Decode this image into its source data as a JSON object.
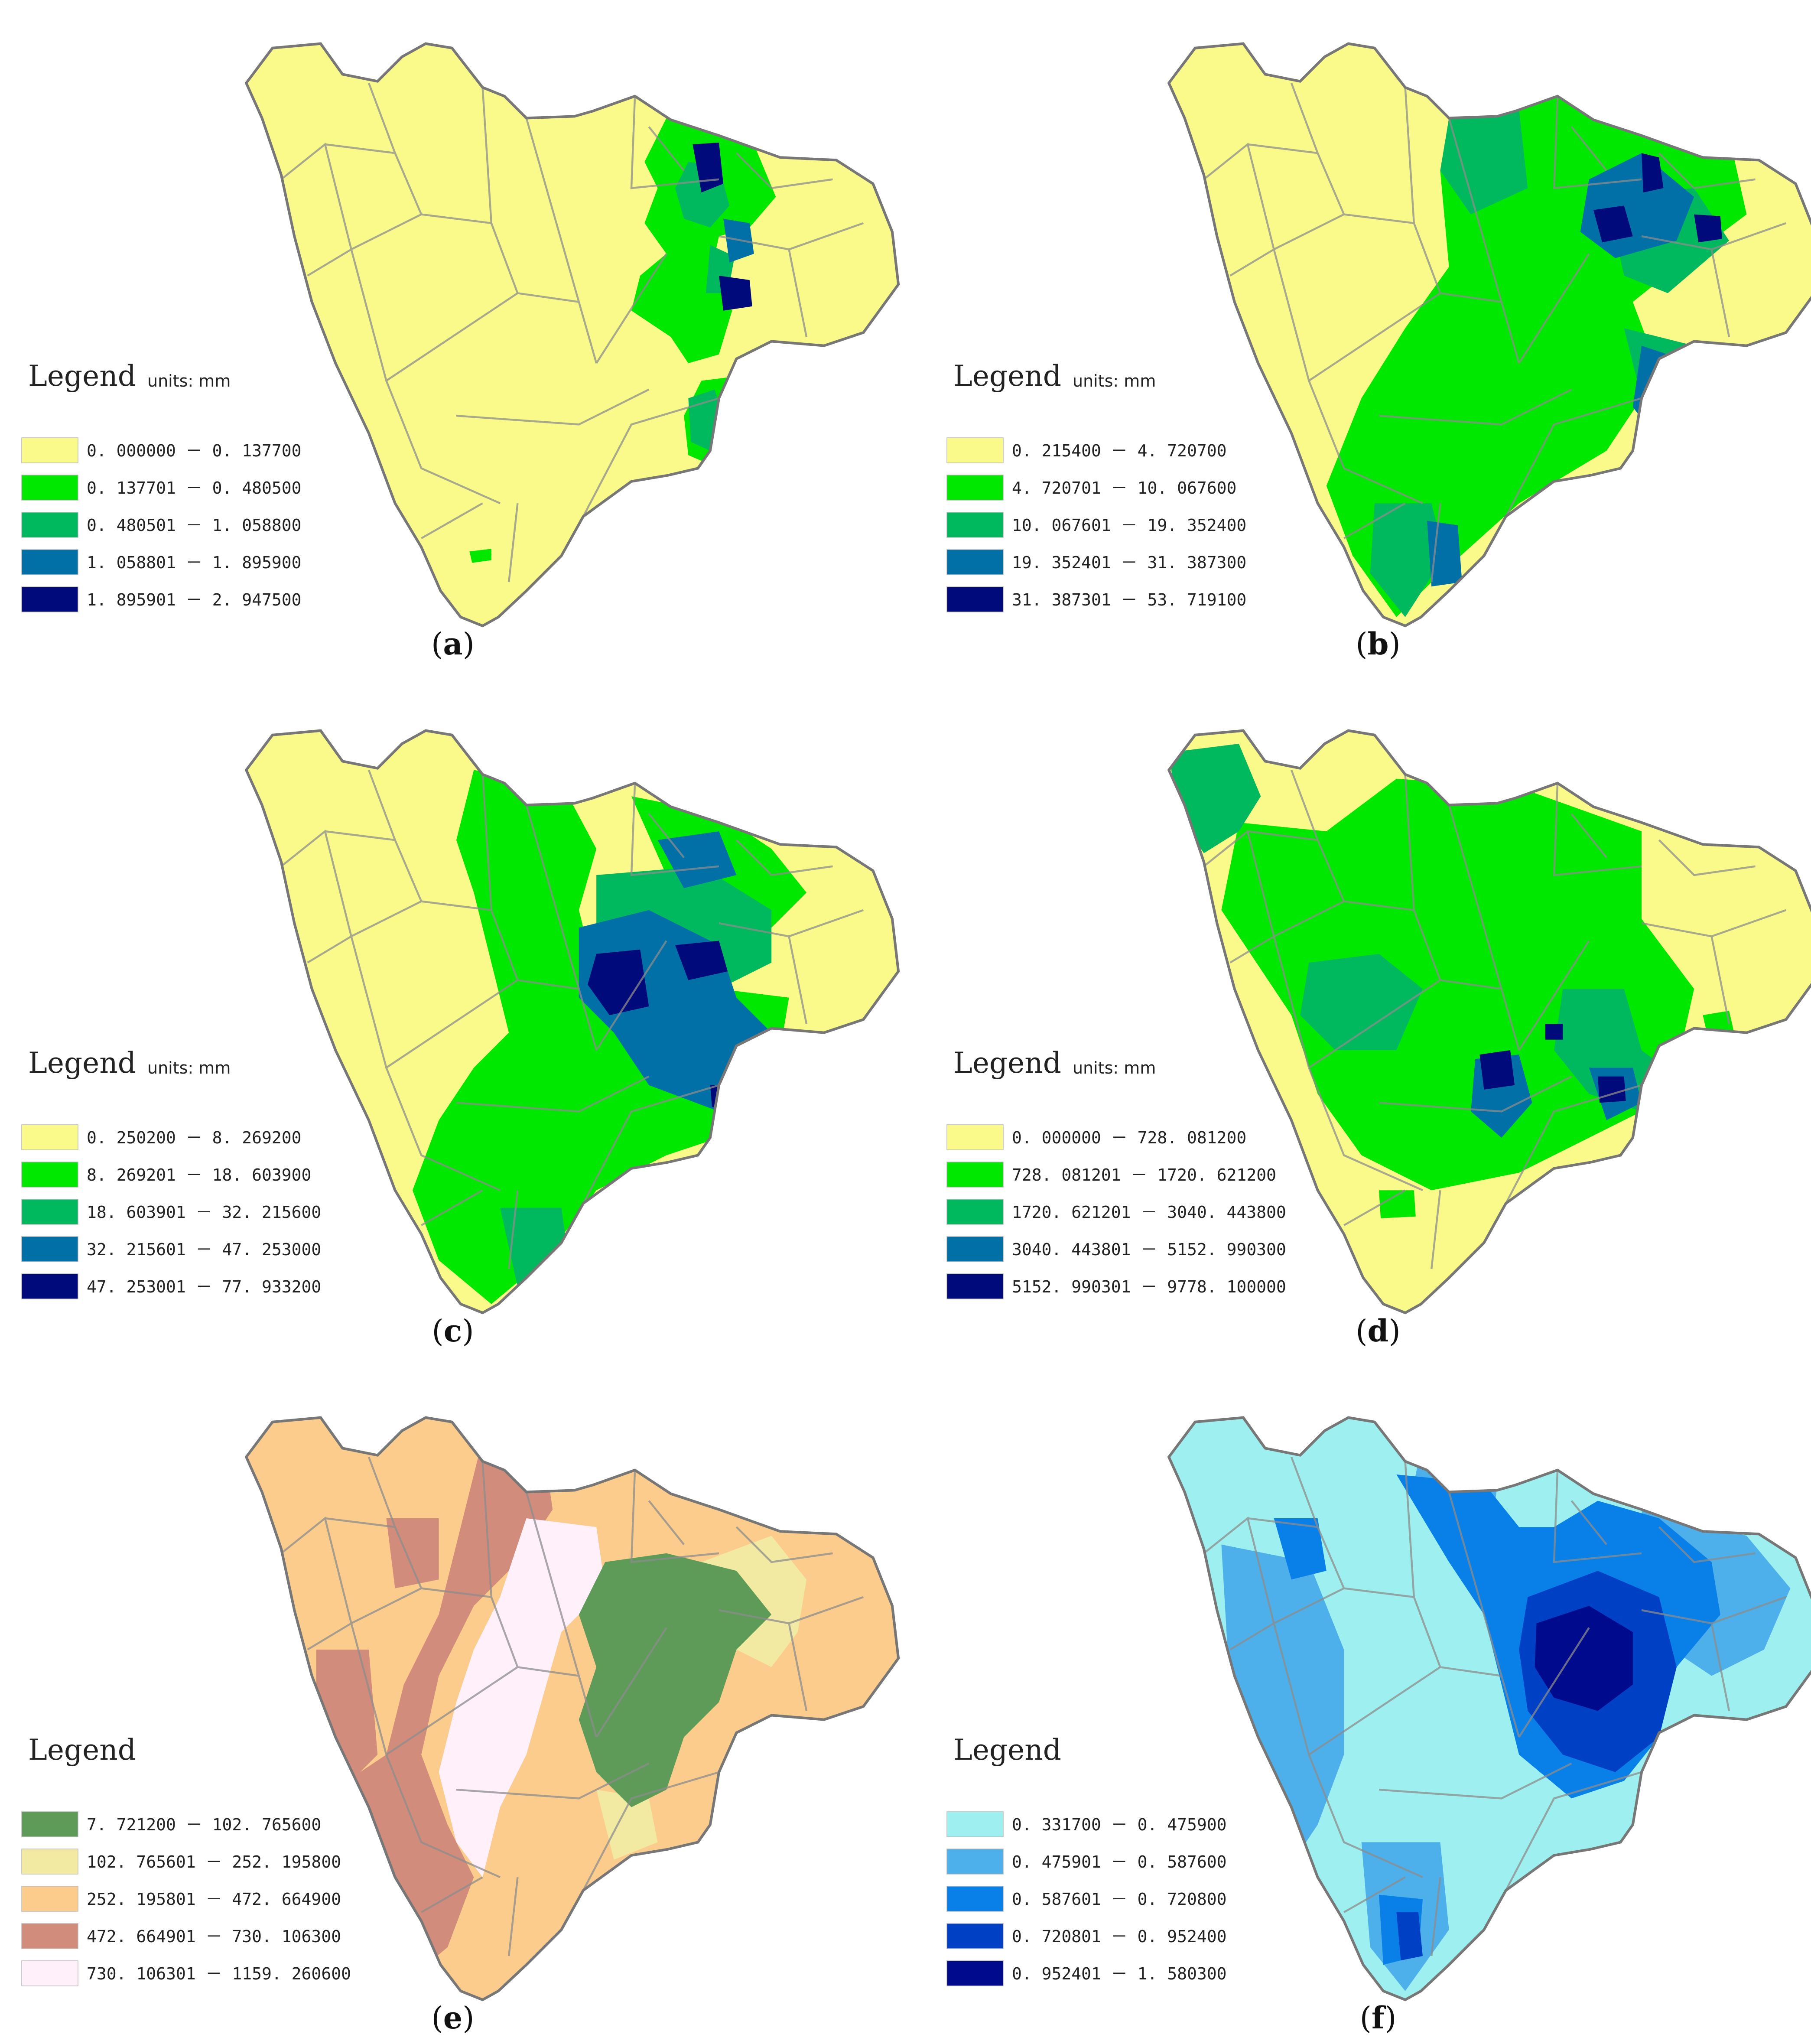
{
  "panels": [
    {
      "id": "a",
      "caption": "a",
      "legend_title": "Legend",
      "units": "units: mm",
      "palette": [
        "#fafa8a",
        "#00e800",
        "#00b85e",
        "#0070a6",
        "#000a7a"
      ],
      "classes": [
        "0. 000000 － 0. 137700",
        "0. 137701 － 0. 480500",
        "0. 480501 － 1. 058800",
        "1. 058801 － 1. 895900",
        "1. 895901 － 2. 947500"
      ]
    },
    {
      "id": "b",
      "caption": "b",
      "legend_title": "Legend",
      "units": "units: mm",
      "palette": [
        "#fafa8a",
        "#00e800",
        "#00b85e",
        "#0070a6",
        "#000a7a"
      ],
      "classes": [
        "0. 215400 － 4. 720700",
        "4. 720701 － 10. 067600",
        "10. 067601 － 19. 352400",
        "19. 352401 － 31. 387300",
        "31. 387301 － 53. 719100"
      ]
    },
    {
      "id": "c",
      "caption": "c",
      "legend_title": "Legend",
      "units": "units: mm",
      "palette": [
        "#fafa8a",
        "#00e800",
        "#00b85e",
        "#0070a6",
        "#000a7a"
      ],
      "classes": [
        "0. 250200 － 8. 269200",
        "8. 269201 － 18. 603900",
        "18. 603901 － 32. 215600",
        "32. 215601 － 47. 253000",
        "47. 253001 － 77. 933200"
      ]
    },
    {
      "id": "d",
      "caption": "d",
      "legend_title": "Legend",
      "units": "units: mm",
      "palette": [
        "#fafa8a",
        "#00e800",
        "#00b85e",
        "#0070a6",
        "#000a7a"
      ],
      "classes": [
        "0. 000000 － 728. 081200",
        "728. 081201 － 1720. 621200",
        "1720. 621201 － 3040. 443800",
        "3040. 443801 － 5152. 990300",
        "5152. 990301 － 9778. 100000"
      ]
    },
    {
      "id": "e",
      "caption": "e",
      "legend_title": "Legend",
      "units": "",
      "palette": [
        "#5e9a58",
        "#f2eaa2",
        "#fbcc8c",
        "#d28c7c",
        "#fff0fa"
      ],
      "classes": [
        "7. 721200 － 102. 765600",
        "102. 765601 － 252. 195800",
        "252. 195801 － 472. 664900",
        "472. 664901 － 730. 106300",
        "730. 106301 － 1159. 260600"
      ]
    },
    {
      "id": "f",
      "caption": "f",
      "legend_title": "Legend",
      "units": "",
      "palette": [
        "#9ef0f0",
        "#4eb0ea",
        "#0880e8",
        "#0040c4",
        "#000a8c"
      ],
      "classes": [
        "0. 331700 － 0. 475900",
        "0. 475901 － 0. 587600",
        "0. 587601 － 0. 720800",
        "0. 720801 － 0. 952400",
        "0. 952401 － 1. 580300"
      ]
    }
  ]
}
